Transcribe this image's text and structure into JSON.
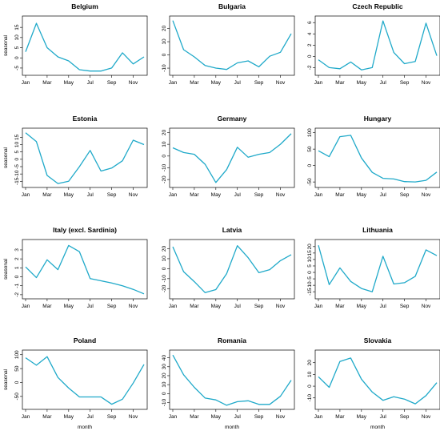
{
  "chart_data": {
    "type": "line",
    "ylabel": "seasonal",
    "xlabel": "month",
    "x_tick_labels": [
      "Jan",
      "Mar",
      "May",
      "Jul",
      "Sep",
      "Nov"
    ],
    "line_color": "#1fa9c9",
    "grid": false,
    "panels": [
      {
        "title": "Belgium",
        "yticks": [
          -5,
          0,
          5,
          10,
          15
        ],
        "ylim": [
          -7,
          19
        ],
        "values": [
          3,
          17,
          5,
          0.5,
          -1.5,
          -5.8,
          -6.5,
          -6.5,
          -5,
          2.5,
          -3,
          0.5
        ]
      },
      {
        "title": "Bulgaria",
        "yticks": [
          -10,
          0,
          10,
          20
        ],
        "ylim": [
          -13,
          27
        ],
        "values": [
          26,
          4,
          -1.5,
          -8,
          -10,
          -11,
          -6,
          -4.5,
          -9,
          -1,
          2,
          16
        ]
      },
      {
        "title": "Czech Republic",
        "yticks": [
          -2,
          0,
          2,
          4,
          6
        ],
        "ylim": [
          -2.8,
          6.6
        ],
        "values": [
          -0.6,
          -2,
          -2.2,
          -1,
          -2.4,
          -2,
          6.3,
          0.7,
          -1.3,
          -0.9,
          5.9,
          0.1
        ]
      },
      {
        "title": "Estonia",
        "yticks": [
          -15,
          -10,
          -5,
          0,
          5,
          10,
          15
        ],
        "ylim": [
          -17,
          19
        ],
        "values": [
          18,
          12,
          -11,
          -16.5,
          -15,
          -5,
          6,
          -8,
          -6,
          -1,
          13,
          10
        ]
      },
      {
        "title": "Germany",
        "yticks": [
          -20,
          -10,
          0,
          10,
          20
        ],
        "ylim": [
          -24,
          21
        ],
        "values": [
          7,
          3,
          1.5,
          -7,
          -22.5,
          -11.5,
          7.5,
          -1,
          1.5,
          3,
          10,
          19
        ]
      },
      {
        "title": "Hungary",
        "yticks": [
          -50,
          0,
          50,
          100
        ],
        "ylim": [
          -57,
          104
        ],
        "values": [
          45,
          27,
          88,
          92,
          23,
          -21,
          -39,
          -41,
          -49,
          -50,
          -45,
          -20
        ]
      },
      {
        "title": "Italy (excl. Sardinia)",
        "yticks": [
          -2,
          -1,
          0,
          1,
          2,
          3
        ],
        "ylim": [
          -2.1,
          3.8
        ],
        "values": [
          1.1,
          -0.1,
          1.9,
          0.8,
          3.5,
          2.8,
          -0.2,
          -0.45,
          -0.7,
          -1,
          -1.4,
          -1.9
        ]
      },
      {
        "title": "Latvia",
        "yticks": [
          -20,
          -10,
          0,
          10,
          20
        ],
        "ylim": [
          -27,
          26
        ],
        "values": [
          22,
          -3,
          -13,
          -24,
          -21,
          -5,
          23,
          11,
          -4,
          -1,
          8,
          14
        ]
      },
      {
        "title": "Lithuania",
        "yticks": [
          -15,
          -10,
          -5,
          0,
          5,
          10,
          15,
          20
        ],
        "ylim": [
          -18,
          23
        ],
        "values": [
          21,
          -9.5,
          3.5,
          -7,
          -12.5,
          -15,
          12.5,
          -9,
          -8,
          -3,
          17.5,
          13
        ]
      },
      {
        "title": "Poland",
        "yticks": [
          -50,
          0,
          50,
          100
        ],
        "ylim": [
          -85,
          105
        ],
        "values": [
          89,
          62,
          93,
          18,
          -20,
          -52,
          -52,
          -52,
          -78,
          -60,
          -2,
          65
        ]
      },
      {
        "title": "Romania",
        "yticks": [
          -10,
          0,
          10,
          20,
          30,
          40
        ],
        "ylim": [
          -14,
          45
        ],
        "values": [
          43,
          21,
          7,
          -5,
          -7,
          -13,
          -9,
          -8,
          -12,
          -12,
          -3,
          15
        ]
      },
      {
        "title": "Slovakia",
        "yticks": [
          -10,
          0,
          10,
          20
        ],
        "ylim": [
          -17,
          28
        ],
        "values": [
          8,
          -1,
          21,
          24,
          6,
          -5,
          -12,
          -9,
          -11,
          -15,
          -8,
          3
        ]
      }
    ]
  }
}
